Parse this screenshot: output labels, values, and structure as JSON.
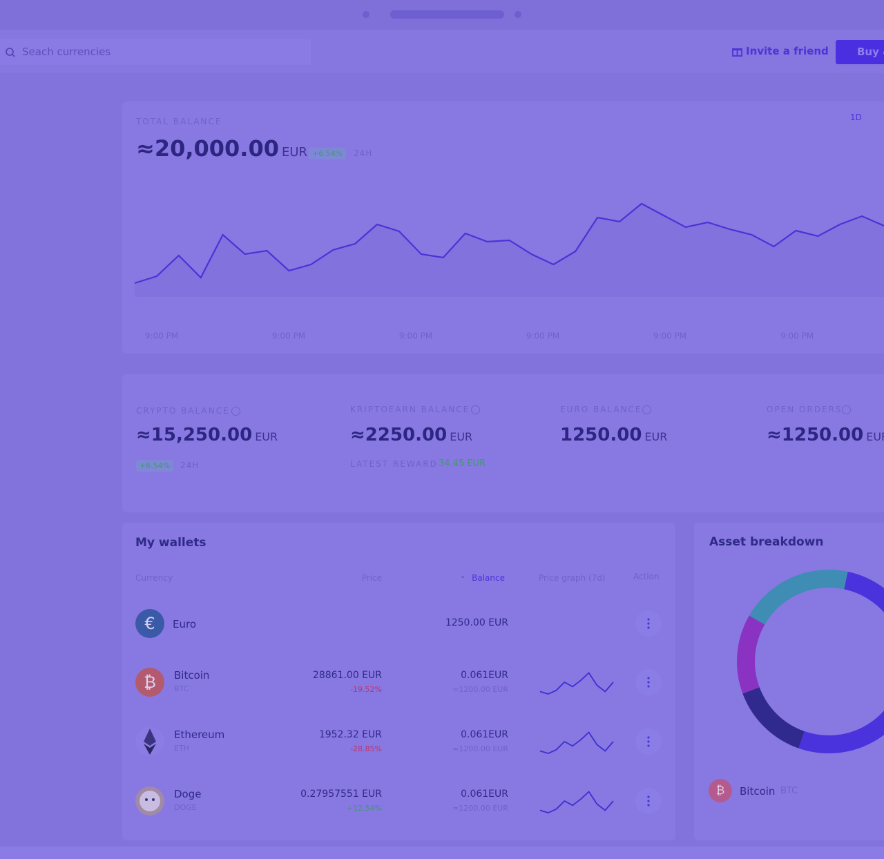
{
  "header": {
    "search_placeholder": "Seach currencies",
    "invite": "Invite a friend",
    "buy": "Buy &"
  },
  "total_balance": {
    "label": "TOTAL BALANCE",
    "amount": "≈20,000.00",
    "currency": "EUR",
    "change": "+6.54%",
    "period": "24H",
    "range": "1D",
    "x_labels": [
      "9:00 PM",
      "9:00 PM",
      "9:00 PM",
      "9:00 PM",
      "9:00 PM",
      "9:00 PM"
    ]
  },
  "balances": [
    {
      "label": "CRYPTO BALANCE",
      "amount": "≈15,250.00",
      "currency": "EUR",
      "sub_a": "+6.54%",
      "sub_b": "24H"
    },
    {
      "label": "KRIPTOEARN BALANCE",
      "amount": "≈2250.00",
      "currency": "EUR",
      "sub_a": "LATEST REWARD",
      "sub_b": "34.45 EUR"
    },
    {
      "label": "EURO BALANCE",
      "amount": "1250.00",
      "currency": "EUR"
    },
    {
      "label": "OPEN ORDERS",
      "amount": "≈1250.00",
      "currency": "EUR"
    }
  ],
  "wallets": {
    "title": "My wallets",
    "columns": [
      "Currency",
      "Price",
      "Balance",
      "Price graph (7d)",
      "Action"
    ],
    "rows": [
      {
        "icon": "€",
        "name": "Euro",
        "balance": "1250.00 EUR"
      },
      {
        "icon": "₿",
        "name": "Bitcoin",
        "ticker": "BTC",
        "price": "28861.00 EUR",
        "change": "-19.52%",
        "balance": "0.061EUR",
        "balance_eur": "≈1200.00 EUR"
      },
      {
        "name": "Ethereum",
        "ticker": "ETH",
        "price": "1952.32 EUR",
        "change": "-28.85%",
        "balance": "0.061EUR",
        "balance_eur": "≈1200.00 EUR"
      },
      {
        "name": "Doge",
        "ticker": "DOGE",
        "price": "0.27957551 EUR",
        "change": "+12.54%",
        "balance": "0.061EUR",
        "balance_eur": "≈1200.00 EUR"
      }
    ]
  },
  "asset_breakdown": {
    "title": "Asset breakdown",
    "legend_icon": "₿",
    "legend_name": "Bitcoin",
    "legend_ticker": "BTC"
  },
  "chart_data": [
    {
      "type": "line",
      "color": "#4a33d6",
      "ylim": [
        0,
        180
      ],
      "values": [
        20,
        30,
        60,
        28,
        90,
        62,
        67,
        38,
        47,
        68,
        77,
        105,
        95,
        62,
        57,
        92,
        80,
        82,
        62,
        47,
        66,
        115,
        109,
        135,
        118,
        101,
        108,
        98,
        90,
        73,
        96,
        88,
        105,
        117,
        103
      ]
    },
    {
      "type": "donut",
      "values": [
        20,
        52,
        14,
        14
      ],
      "colors": [
        "#3f8db4",
        "#4a32dc",
        "#302a8e",
        "#8a33c2"
      ]
    },
    {
      "type": "sparkline",
      "color": "#3d2fd0",
      "ylim": [
        0,
        40
      ],
      "values": [
        5,
        1,
        7,
        20,
        13,
        23,
        35,
        15,
        5,
        20
      ]
    },
    {
      "type": "sparkline",
      "color": "#3d2fd0",
      "ylim": [
        0,
        40
      ],
      "values": [
        5,
        1,
        7,
        20,
        13,
        23,
        35,
        15,
        5,
        20
      ]
    },
    {
      "type": "sparkline",
      "color": "#3d2fd0",
      "ylim": [
        0,
        40
      ],
      "values": [
        5,
        1,
        7,
        20,
        13,
        23,
        35,
        15,
        5,
        20
      ]
    }
  ]
}
